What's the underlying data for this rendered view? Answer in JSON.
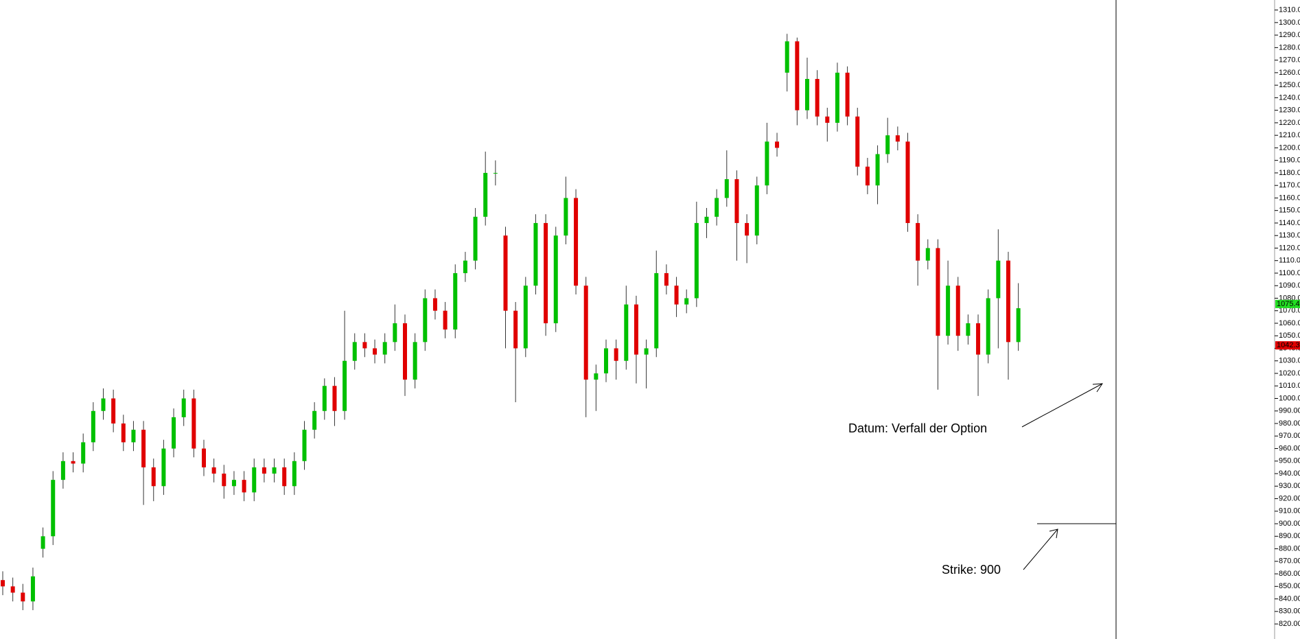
{
  "chart_data": {
    "type": "candlestick",
    "categories": [
      null,
      null,
      null,
      null,
      null,
      null,
      null,
      null,
      null,
      null,
      null,
      null,
      null,
      null,
      null,
      null,
      null,
      null,
      null,
      null,
      null,
      null,
      null,
      null,
      null,
      null,
      null,
      null,
      null,
      null,
      null,
      null,
      null,
      null,
      null,
      null,
      null,
      null,
      null,
      null,
      null,
      null,
      null,
      null,
      null,
      null,
      null,
      null,
      null,
      null,
      null,
      null,
      null,
      null,
      null,
      null,
      null,
      null,
      null,
      null,
      null,
      null,
      null,
      null,
      null,
      null,
      null,
      null,
      null,
      null,
      null,
      null,
      null,
      null,
      null,
      null,
      null,
      null,
      null,
      null,
      null,
      null,
      null,
      null,
      null,
      null,
      null,
      null,
      null,
      null,
      null,
      null,
      null,
      null,
      null,
      null,
      null,
      null,
      null,
      null,
      null,
      null
    ],
    "open": [
      855,
      850,
      845,
      838,
      880,
      890,
      935,
      950,
      948,
      965,
      990,
      1000,
      980,
      965,
      975,
      945,
      930,
      960,
      985,
      1000,
      960,
      945,
      940,
      930,
      935,
      925,
      945,
      940,
      945,
      930,
      950,
      975,
      990,
      1010,
      990,
      1030,
      1045,
      1040,
      1035,
      1045,
      1060,
      1015,
      1045,
      1080,
      1070,
      1055,
      1100,
      1110,
      1145,
      1180,
      1130,
      1070,
      1040,
      1090,
      1140,
      1060,
      1130,
      1160,
      1090,
      1015,
      1020,
      1040,
      1030,
      1075,
      1035,
      1040,
      1100,
      1090,
      1075,
      1080,
      1140,
      1145,
      1160,
      1175,
      1140,
      1130,
      1170,
      1205,
      1260,
      1285,
      1230,
      1255,
      1225,
      1220,
      1260,
      1225,
      1185,
      1170,
      1195,
      1210,
      1205,
      1140,
      1110,
      1120,
      1050,
      1090,
      1050,
      1060,
      1035,
      1080,
      1110,
      1045
    ],
    "high": [
      862,
      857,
      852,
      865,
      897,
      942,
      957,
      957,
      972,
      997,
      1008,
      1007,
      987,
      982,
      982,
      952,
      967,
      992,
      1007,
      1007,
      967,
      952,
      947,
      942,
      942,
      952,
      952,
      952,
      952,
      957,
      982,
      997,
      1016,
      1017,
      1070,
      1052,
      1052,
      1047,
      1052,
      1075,
      1067,
      1052,
      1087,
      1087,
      1077,
      1107,
      1117,
      1152,
      1197,
      1190,
      1137,
      1077,
      1097,
      1147,
      1147,
      1137,
      1177,
      1167,
      1097,
      1027,
      1047,
      1047,
      1090,
      1082,
      1047,
      1118,
      1107,
      1097,
      1087,
      1157,
      1152,
      1167,
      1198,
      1182,
      1147,
      1177,
      1220,
      1212,
      1291,
      1288,
      1272,
      1262,
      1232,
      1268,
      1265,
      1232,
      1192,
      1202,
      1224,
      1217,
      1212,
      1147,
      1127,
      1127,
      1110,
      1097,
      1067,
      1067,
      1087,
      1135,
      1117,
      1092
    ],
    "low": [
      843,
      838,
      831,
      831,
      873,
      883,
      928,
      941,
      941,
      958,
      983,
      973,
      958,
      958,
      915,
      918,
      923,
      953,
      978,
      953,
      938,
      933,
      920,
      923,
      918,
      918,
      933,
      933,
      923,
      923,
      943,
      968,
      983,
      978,
      983,
      1023,
      1033,
      1028,
      1028,
      1038,
      1002,
      1008,
      1038,
      1063,
      1048,
      1048,
      1093,
      1103,
      1138,
      1170,
      1040,
      997,
      1033,
      1083,
      1050,
      1053,
      1123,
      1083,
      985,
      990,
      1013,
      1015,
      1023,
      1012,
      1008,
      1033,
      1083,
      1065,
      1068,
      1073,
      1128,
      1138,
      1153,
      1110,
      1108,
      1123,
      1163,
      1193,
      1245,
      1218,
      1223,
      1218,
      1205,
      1213,
      1218,
      1178,
      1163,
      1155,
      1188,
      1198,
      1133,
      1090,
      1103,
      1007,
      1043,
      1038,
      1043,
      1002,
      1028,
      1040,
      1015,
      1038
    ],
    "close": [
      850,
      845,
      838,
      858,
      890,
      935,
      950,
      948,
      965,
      990,
      1000,
      980,
      965,
      975,
      945,
      930,
      960,
      985,
      1000,
      960,
      945,
      940,
      930,
      935,
      925,
      945,
      940,
      945,
      930,
      950,
      975,
      990,
      1010,
      990,
      1030,
      1045,
      1040,
      1035,
      1045,
      1060,
      1015,
      1045,
      1080,
      1070,
      1055,
      1100,
      1110,
      1145,
      1180,
      1180,
      1070,
      1040,
      1090,
      1140,
      1060,
      1130,
      1160,
      1090,
      1015,
      1020,
      1040,
      1030,
      1075,
      1035,
      1040,
      1100,
      1090,
      1075,
      1080,
      1140,
      1145,
      1160,
      1175,
      1140,
      1130,
      1170,
      1205,
      1200,
      1285,
      1230,
      1255,
      1225,
      1220,
      1260,
      1225,
      1185,
      1170,
      1195,
      1210,
      1205,
      1140,
      1110,
      1120,
      1050,
      1090,
      1050,
      1060,
      1035,
      1080,
      1110,
      1045,
      1072
    ],
    "up_color": "#00c000",
    "down_color": "#e00000",
    "ylim": [
      808,
      1318
    ],
    "yticks": [
      {
        "value": 820,
        "label": "820.00"
      },
      {
        "value": 830,
        "label": "830.00"
      },
      {
        "value": 840,
        "label": "840.00"
      },
      {
        "value": 850,
        "label": "850.00"
      },
      {
        "value": 860,
        "label": "860.00"
      },
      {
        "value": 870,
        "label": "870.00"
      },
      {
        "value": 880,
        "label": "880.00"
      },
      {
        "value": 890,
        "label": "890.00"
      },
      {
        "value": 900,
        "label": "900.00"
      },
      {
        "value": 910,
        "label": "910.00"
      },
      {
        "value": 920,
        "label": "920.00"
      },
      {
        "value": 930,
        "label": "930.00"
      },
      {
        "value": 940,
        "label": "940.00"
      },
      {
        "value": 950,
        "label": "950.00"
      },
      {
        "value": 960,
        "label": "960.00"
      },
      {
        "value": 970,
        "label": "970.00"
      },
      {
        "value": 980,
        "label": "980.00"
      },
      {
        "value": 990,
        "label": "990.00"
      },
      {
        "value": 1000,
        "label": "1000.00"
      },
      {
        "value": 1010,
        "label": "1010.00"
      },
      {
        "value": 1020,
        "label": "1020.00"
      },
      {
        "value": 1030,
        "label": "1030.00"
      },
      {
        "value": 1040,
        "label": "1040.00"
      },
      {
        "value": 1050,
        "label": "1050.00"
      },
      {
        "value": 1060,
        "label": "1060.00"
      },
      {
        "value": 1070,
        "label": "1070.00"
      },
      {
        "value": 1080,
        "label": "1080.00"
      },
      {
        "value": 1090,
        "label": "1090.00"
      },
      {
        "value": 1100,
        "label": "1100.00"
      },
      {
        "value": 1110,
        "label": "1110.00"
      },
      {
        "value": 1120,
        "label": "1120.00"
      },
      {
        "value": 1130,
        "label": "1130.00"
      },
      {
        "value": 1140,
        "label": "1140.00"
      },
      {
        "value": 1150,
        "label": "1150.00"
      },
      {
        "value": 1160,
        "label": "1160.00"
      },
      {
        "value": 1170,
        "label": "1170.00"
      },
      {
        "value": 1180,
        "label": "1180.00"
      },
      {
        "value": 1190,
        "label": "1190.00"
      },
      {
        "value": 1200,
        "label": "1200.00"
      },
      {
        "value": 1210,
        "label": "1210.00"
      },
      {
        "value": 1220,
        "label": "1220.00"
      },
      {
        "value": 1230,
        "label": "1230.00"
      },
      {
        "value": 1240,
        "label": "1240.00"
      },
      {
        "value": 1250,
        "label": "1250.00"
      },
      {
        "value": 1260,
        "label": "1260.00"
      },
      {
        "value": 1270,
        "label": "1270.00"
      },
      {
        "value": 1280,
        "label": "1280.00"
      },
      {
        "value": 1290,
        "label": "1290.00"
      },
      {
        "value": 1300,
        "label": "1300.00"
      },
      {
        "value": 1310,
        "label": "1310.00"
      }
    ],
    "price_labels": [
      {
        "value": 1075.4,
        "label": "1075.40",
        "color": "#22dd22"
      },
      {
        "value": 1042.37,
        "label": "1042.37",
        "color": "#e00000"
      }
    ],
    "annotations": [
      {
        "text": "Datum: Verfall der Option"
      },
      {
        "text": "Strike: 900",
        "value": 900
      }
    ]
  }
}
